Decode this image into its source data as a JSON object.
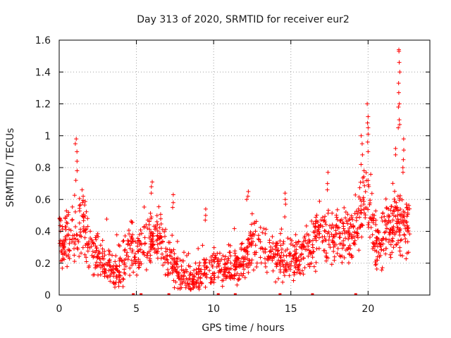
{
  "chart_data": {
    "type": "scatter",
    "title": "Day 313 of 2020, SRMTID for receiver eur2",
    "xlabel": "GPS time / hours",
    "ylabel": "SRMTID / TECUs",
    "xlim": [
      0,
      24
    ],
    "ylim": [
      0,
      1.6
    ],
    "x_ticks": [
      0,
      5,
      10,
      15,
      20
    ],
    "x_tick_labels": [
      "0",
      "5",
      "10",
      "15",
      "20"
    ],
    "y_ticks": [
      0,
      0.2,
      0.4,
      0.6,
      0.8,
      1.0,
      1.2,
      1.4,
      1.6
    ],
    "y_tick_labels": [
      "0",
      "0.2",
      "0.4",
      "0.6",
      "0.8",
      "1",
      "1.2",
      "1.4",
      "1.6"
    ],
    "grid": true,
    "marker": "plus",
    "series_color": "#ff0000",
    "x_range": [
      0,
      22.7
    ],
    "trend": [
      [
        0.0,
        0.33
      ],
      [
        0.5,
        0.35
      ],
      [
        0.9,
        0.4
      ],
      [
        1.2,
        0.45
      ],
      [
        1.6,
        0.42
      ],
      [
        2.0,
        0.3
      ],
      [
        2.5,
        0.25
      ],
      [
        3.0,
        0.2
      ],
      [
        3.4,
        0.15
      ],
      [
        3.8,
        0.14
      ],
      [
        4.2,
        0.2
      ],
      [
        4.7,
        0.3
      ],
      [
        5.0,
        0.22
      ],
      [
        5.4,
        0.28
      ],
      [
        5.9,
        0.34
      ],
      [
        6.5,
        0.36
      ],
      [
        7.0,
        0.26
      ],
      [
        7.5,
        0.17
      ],
      [
        8.0,
        0.12
      ],
      [
        8.5,
        0.1
      ],
      [
        9.0,
        0.1
      ],
      [
        9.5,
        0.14
      ],
      [
        10.0,
        0.18
      ],
      [
        10.5,
        0.16
      ],
      [
        11.0,
        0.18
      ],
      [
        11.5,
        0.17
      ],
      [
        12.0,
        0.22
      ],
      [
        12.5,
        0.32
      ],
      [
        13.0,
        0.3
      ],
      [
        13.5,
        0.26
      ],
      [
        14.0,
        0.22
      ],
      [
        14.5,
        0.22
      ],
      [
        15.0,
        0.23
      ],
      [
        15.5,
        0.25
      ],
      [
        16.0,
        0.28
      ],
      [
        16.5,
        0.34
      ],
      [
        17.0,
        0.38
      ],
      [
        17.5,
        0.36
      ],
      [
        18.0,
        0.38
      ],
      [
        18.5,
        0.36
      ],
      [
        19.0,
        0.4
      ],
      [
        19.5,
        0.5
      ],
      [
        19.8,
        0.62
      ],
      [
        20.2,
        0.45
      ],
      [
        20.6,
        0.3
      ],
      [
        21.0,
        0.36
      ],
      [
        21.4,
        0.42
      ],
      [
        21.8,
        0.48
      ],
      [
        22.2,
        0.45
      ],
      [
        22.7,
        0.38
      ]
    ],
    "spikes": [
      {
        "x": 1.1,
        "y": [
          0.98,
          0.95,
          0.9,
          0.84,
          0.78,
          0.72
        ]
      },
      {
        "x": 1.5,
        "y": [
          0.66,
          0.62,
          0.58
        ]
      },
      {
        "x": 6.0,
        "y": [
          0.71,
          0.68,
          0.64
        ]
      },
      {
        "x": 7.4,
        "y": [
          0.63,
          0.58,
          0.55
        ]
      },
      {
        "x": 9.5,
        "y": [
          0.54,
          0.5,
          0.47
        ]
      },
      {
        "x": 12.2,
        "y": [
          0.65,
          0.62,
          0.6
        ]
      },
      {
        "x": 14.6,
        "y": [
          0.64,
          0.6,
          0.57
        ]
      },
      {
        "x": 17.4,
        "y": [
          0.77,
          0.7,
          0.66
        ]
      },
      {
        "x": 19.6,
        "y": [
          1.0,
          0.95,
          0.88,
          0.82
        ]
      },
      {
        "x": 20.0,
        "y": [
          1.2,
          1.12,
          1.08,
          1.05,
          1.01,
          0.96,
          0.9
        ]
      },
      {
        "x": 21.8,
        "y": [
          0.92,
          0.88
        ]
      },
      {
        "x": 22.0,
        "y": [
          1.54,
          1.53,
          1.46,
          1.4,
          1.33,
          1.27,
          1.2,
          1.18,
          1.1,
          1.07,
          1.05
        ]
      },
      {
        "x": 22.3,
        "y": [
          0.98,
          0.91,
          0.85,
          0.8,
          0.77
        ]
      }
    ],
    "gap_markers_x": [
      4.8,
      5.3,
      7.1,
      10.3,
      11.4,
      14.3,
      16.4,
      19.2
    ]
  }
}
